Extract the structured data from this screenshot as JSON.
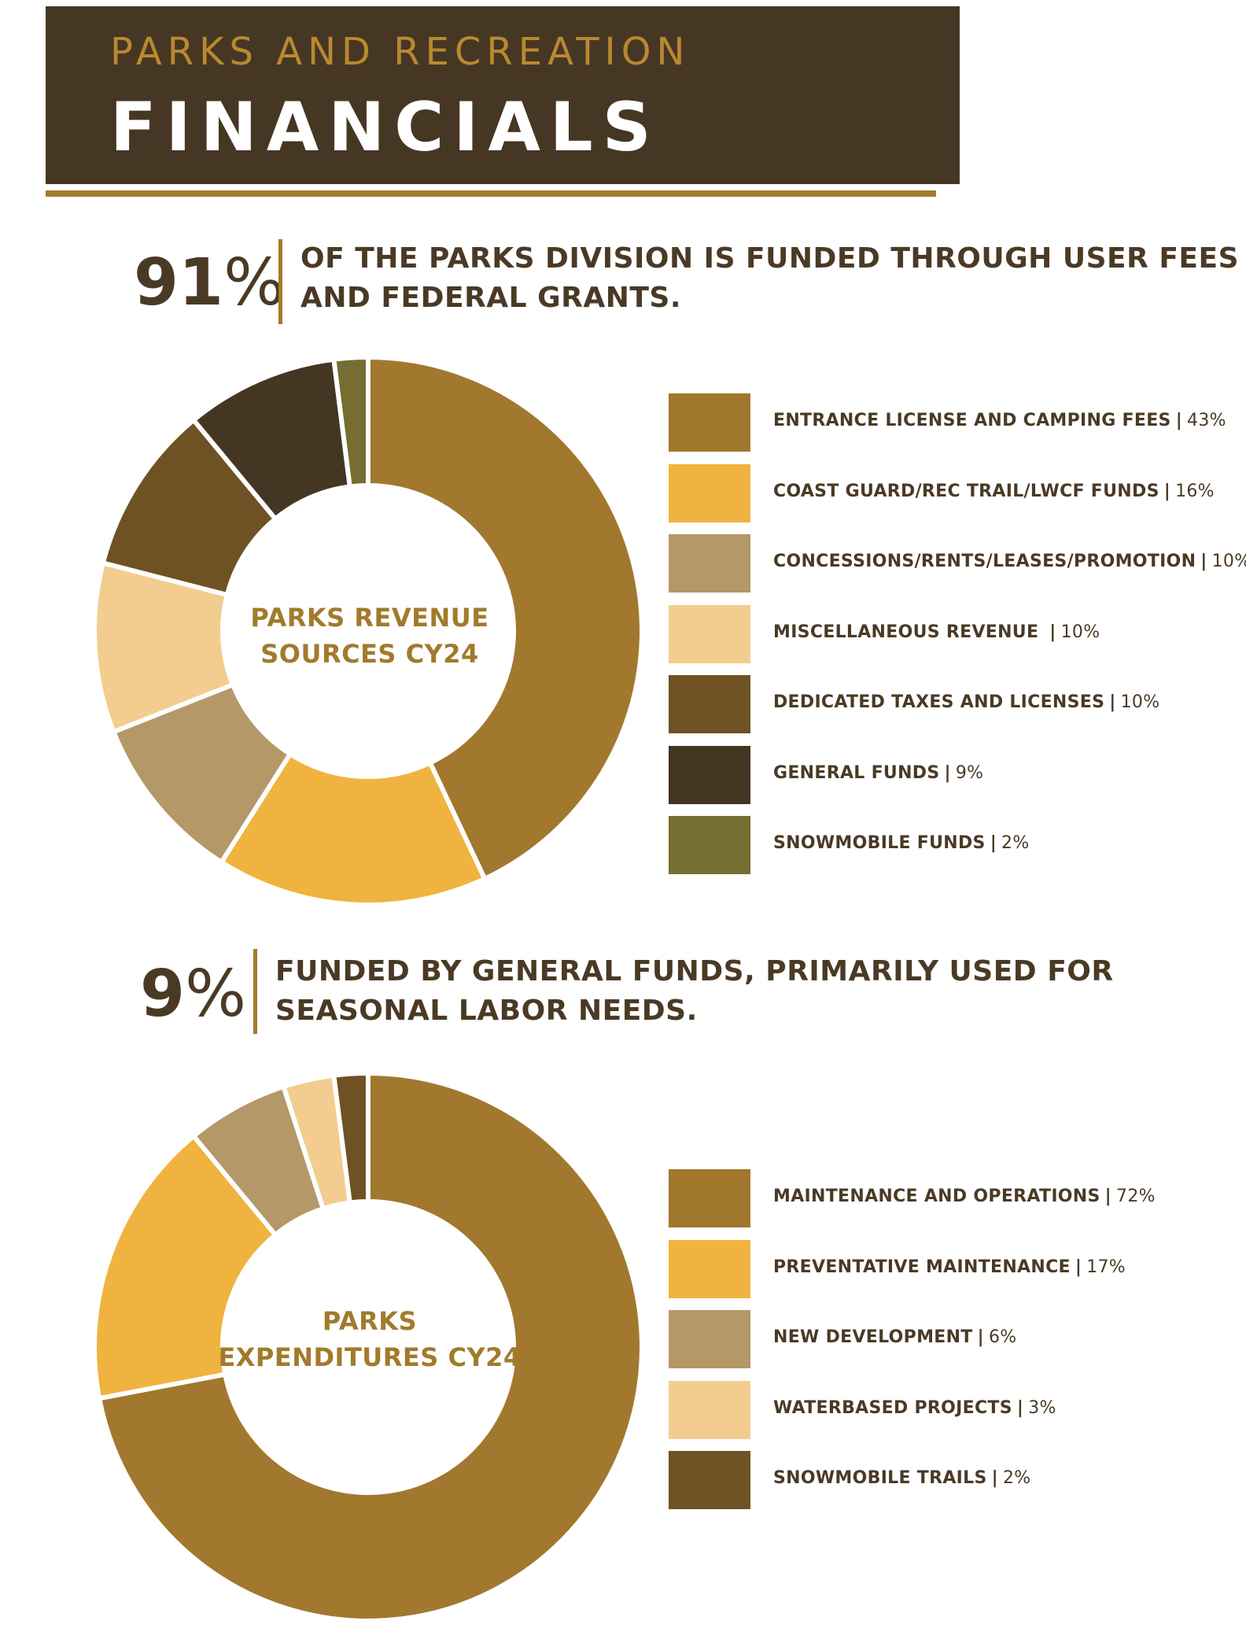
{
  "header": {
    "kicker": "PARKS AND RECREATION",
    "title": "FINANCIALS"
  },
  "stat1": {
    "number": "91",
    "unit": "%",
    "text_line1": "OF THE PARKS DIVISION IS FUNDED THROUGH USER FEES",
    "text_line2": "AND FEDERAL GRANTS."
  },
  "stat2": {
    "number": "9",
    "unit": "%",
    "text_line1": "FUNDED BY GENERAL FUNDS, PRIMARILY USED FOR",
    "text_line2": "SEASONAL LABOR NEEDS."
  },
  "chart_data": [
    {
      "type": "pie",
      "donut": true,
      "title": "PARKS REVENUE SOURCES CY24",
      "title_line1": "PARKS REVENUE",
      "title_line2": "SOURCES CY24",
      "legend_position": "right",
      "slices": [
        {
          "label": "ENTRANCE LICENSE AND CAMPING FEES",
          "value": 43,
          "value_label": "43%",
          "color": "#a1782e"
        },
        {
          "label": "COAST GUARD/REC TRAIL/LWCF FUNDS",
          "value": 16,
          "value_label": "16%",
          "color": "#f0b33f"
        },
        {
          "label": "CONCESSIONS/RENTS/LEASES/PROMOTION",
          "value": 10,
          "value_label": "10%",
          "color": "#b59868"
        },
        {
          "label": "MISCELLANEOUS REVENUE ",
          "value": 10,
          "value_label": "10%",
          "color": "#f2cd8f"
        },
        {
          "label": "DEDICATED TAXES AND LICENSES",
          "value": 10,
          "value_label": "10%",
          "color": "#6e5224"
        },
        {
          "label": "GENERAL FUNDS",
          "value": 9,
          "value_label": "9%",
          "color": "#443623"
        },
        {
          "label": "SNOWMOBILE FUNDS",
          "value": 2,
          "value_label": "2%",
          "color": "#756d32"
        }
      ]
    },
    {
      "type": "pie",
      "donut": true,
      "title": "PARKS EXPENDITURES CY24",
      "title_line1": "PARKS",
      "title_line2": "EXPENDITURES CY24",
      "legend_position": "right",
      "slices": [
        {
          "label": "MAINTENANCE AND OPERATIONS",
          "value": 72,
          "value_label": "72%",
          "color": "#a1782e"
        },
        {
          "label": "PREVENTATIVE MAINTENANCE",
          "value": 17,
          "value_label": "17%",
          "color": "#f0b33f"
        },
        {
          "label": "NEW DEVELOPMENT",
          "value": 6,
          "value_label": "6%",
          "color": "#b59868"
        },
        {
          "label": "WATERBASED PROJECTS",
          "value": 3,
          "value_label": "3%",
          "color": "#f2cd8f"
        },
        {
          "label": "SNOWMOBILE TRAILS",
          "value": 2,
          "value_label": "2%",
          "color": "#6e5224"
        }
      ]
    }
  ]
}
